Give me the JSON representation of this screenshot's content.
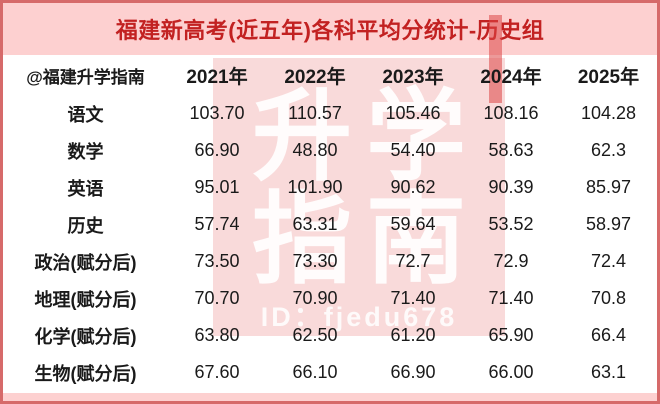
{
  "title": "福建新高考(近五年)各科平均分统计-历史组",
  "watermark": {
    "line1": "升学",
    "line2": "指南",
    "id_text": "ID：fjedu678"
  },
  "table": {
    "header": [
      "@福建升学指南",
      "2021年",
      "2022年",
      "2023年",
      "2024年",
      "2025年"
    ],
    "rows": [
      {
        "label": "语文",
        "values": [
          "103.70",
          "110.57",
          "105.46",
          "108.16",
          "104.28"
        ]
      },
      {
        "label": "数学",
        "values": [
          "66.90",
          "48.80",
          "54.40",
          "58.63",
          "62.3"
        ]
      },
      {
        "label": "英语",
        "values": [
          "95.01",
          "101.90",
          "90.62",
          "90.39",
          "85.97"
        ]
      },
      {
        "label": "历史",
        "values": [
          "57.74",
          "63.31",
          "59.64",
          "53.52",
          "58.97"
        ]
      },
      {
        "label": "政治(赋分后)",
        "values": [
          "73.50",
          "73.30",
          "72.7",
          "72.9",
          "72.4"
        ]
      },
      {
        "label": "地理(赋分后)",
        "values": [
          "70.70",
          "70.90",
          "71.40",
          "71.40",
          "70.8"
        ]
      },
      {
        "label": "化学(赋分后)",
        "values": [
          "63.80",
          "62.50",
          "61.20",
          "65.90",
          "66.4"
        ]
      },
      {
        "label": "生物(赋分后)",
        "values": [
          "67.60",
          "66.10",
          "66.90",
          "66.00",
          "63.1"
        ]
      }
    ]
  },
  "chart_data": {
    "type": "table",
    "title": "福建新高考(近五年)各科平均分统计-历史组",
    "source_handle": "@福建升学指南",
    "categories": [
      "2021年",
      "2022年",
      "2023年",
      "2024年",
      "2025年"
    ],
    "series": [
      {
        "name": "语文",
        "values": [
          103.7,
          110.57,
          105.46,
          108.16,
          104.28
        ]
      },
      {
        "name": "数学",
        "values": [
          66.9,
          48.8,
          54.4,
          58.63,
          62.3
        ]
      },
      {
        "name": "英语",
        "values": [
          95.01,
          101.9,
          90.62,
          90.39,
          85.97
        ]
      },
      {
        "name": "历史",
        "values": [
          57.74,
          63.31,
          59.64,
          53.52,
          58.97
        ]
      },
      {
        "name": "政治(赋分后)",
        "values": [
          73.5,
          73.3,
          72.7,
          72.9,
          72.4
        ]
      },
      {
        "name": "地理(赋分后)",
        "values": [
          70.7,
          70.9,
          71.4,
          71.4,
          70.8
        ]
      },
      {
        "name": "化学(赋分后)",
        "values": [
          63.8,
          62.5,
          61.2,
          65.9,
          66.4
        ]
      },
      {
        "name": "生物(赋分后)",
        "values": [
          67.6,
          66.1,
          66.9,
          66.0,
          63.1
        ]
      }
    ]
  },
  "colors": {
    "border": "#d66a6a",
    "banner_background": "#fdd0d0",
    "title_text": "#c22121",
    "body_text": "#1a1a1a",
    "watermark_overlay": "#f2a8a8",
    "watermark_text": "#ffffff"
  }
}
